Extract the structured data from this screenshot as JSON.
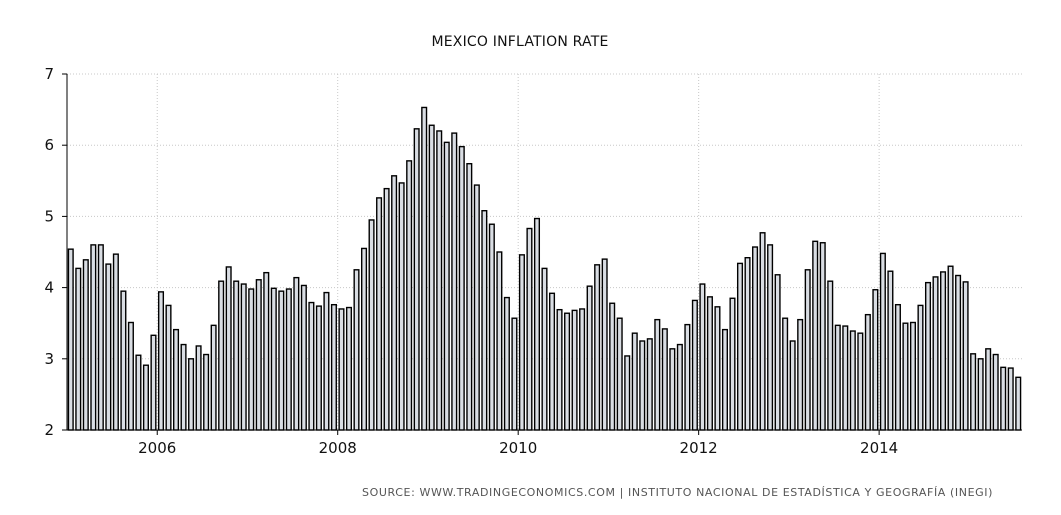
{
  "chart_data": {
    "type": "bar",
    "title": "MEXICO INFLATION RATE",
    "source": "SOURCE: WWW.TRADINGECONOMICS.COM  |  INSTITUTO NACIONAL DE ESTADÍSTICA Y GEOGRAFÍA (INEGI)",
    "xlabel": "",
    "ylabel": "",
    "ylim": [
      2,
      7
    ],
    "yticks": [
      2,
      3,
      4,
      5,
      6,
      7
    ],
    "xlim": [
      2005.0,
      2015.5833
    ],
    "xticks": [
      2006,
      2008,
      2010,
      2012,
      2014
    ],
    "xtick_labels": [
      "2006",
      "2008",
      "2010",
      "2012",
      "2014"
    ],
    "grid": true,
    "bar_fill": "#d9dde3",
    "bar_stroke": "#000000",
    "grid_color": "#c8c8c8",
    "x": [
      "2005-01",
      "2005-02",
      "2005-03",
      "2005-04",
      "2005-05",
      "2005-06",
      "2005-07",
      "2005-08",
      "2005-09",
      "2005-10",
      "2005-11",
      "2005-12",
      "2006-01",
      "2006-02",
      "2006-03",
      "2006-04",
      "2006-05",
      "2006-06",
      "2006-07",
      "2006-08",
      "2006-09",
      "2006-10",
      "2006-11",
      "2006-12",
      "2007-01",
      "2007-02",
      "2007-03",
      "2007-04",
      "2007-05",
      "2007-06",
      "2007-07",
      "2007-08",
      "2007-09",
      "2007-10",
      "2007-11",
      "2007-12",
      "2008-01",
      "2008-02",
      "2008-03",
      "2008-04",
      "2008-05",
      "2008-06",
      "2008-07",
      "2008-08",
      "2008-09",
      "2008-10",
      "2008-11",
      "2008-12",
      "2009-01",
      "2009-02",
      "2009-03",
      "2009-04",
      "2009-05",
      "2009-06",
      "2009-07",
      "2009-08",
      "2009-09",
      "2009-10",
      "2009-11",
      "2009-12",
      "2010-01",
      "2010-02",
      "2010-03",
      "2010-04",
      "2010-05",
      "2010-06",
      "2010-07",
      "2010-08",
      "2010-09",
      "2010-10",
      "2010-11",
      "2010-12",
      "2011-01",
      "2011-02",
      "2011-03",
      "2011-04",
      "2011-05",
      "2011-06",
      "2011-07",
      "2011-08",
      "2011-09",
      "2011-10",
      "2011-11",
      "2011-12",
      "2012-01",
      "2012-02",
      "2012-03",
      "2012-04",
      "2012-05",
      "2012-06",
      "2012-07",
      "2012-08",
      "2012-09",
      "2012-10",
      "2012-11",
      "2012-12",
      "2013-01",
      "2013-02",
      "2013-03",
      "2013-04",
      "2013-05",
      "2013-06",
      "2013-07",
      "2013-08",
      "2013-09",
      "2013-10",
      "2013-11",
      "2013-12",
      "2014-01",
      "2014-02",
      "2014-03",
      "2014-04",
      "2014-05",
      "2014-06",
      "2014-07",
      "2014-08",
      "2014-09",
      "2014-10",
      "2014-11",
      "2014-12",
      "2015-01",
      "2015-02",
      "2015-03",
      "2015-04",
      "2015-05",
      "2015-06",
      "2015-07"
    ],
    "values": [
      4.54,
      4.27,
      4.39,
      4.6,
      4.6,
      4.33,
      4.47,
      3.95,
      3.51,
      3.05,
      2.91,
      3.33,
      3.94,
      3.75,
      3.41,
      3.2,
      3.0,
      3.18,
      3.06,
      3.47,
      4.09,
      4.29,
      4.09,
      4.05,
      3.98,
      4.11,
      4.21,
      3.99,
      3.95,
      3.98,
      4.14,
      4.03,
      3.79,
      3.74,
      3.93,
      3.76,
      3.7,
      3.72,
      4.25,
      4.55,
      4.95,
      5.26,
      5.39,
      5.57,
      5.47,
      5.78,
      6.23,
      6.53,
      6.28,
      6.2,
      6.04,
      6.17,
      5.98,
      5.74,
      5.44,
      5.08,
      4.89,
      4.5,
      3.86,
      3.57,
      4.46,
      4.83,
      4.97,
      4.27,
      3.92,
      3.69,
      3.64,
      3.68,
      3.7,
      4.02,
      4.32,
      4.4,
      3.78,
      3.57,
      3.04,
      3.36,
      3.25,
      3.28,
      3.55,
      3.42,
      3.14,
      3.2,
      3.48,
      3.82,
      4.05,
      3.87,
      3.73,
      3.41,
      3.85,
      4.34,
      4.42,
      4.57,
      4.77,
      4.6,
      4.18,
      3.57,
      3.25,
      3.55,
      4.25,
      4.65,
      4.63,
      4.09,
      3.47,
      3.46,
      3.39,
      3.36,
      3.62,
      3.97,
      4.48,
      4.23,
      3.76,
      3.5,
      3.51,
      3.75,
      4.07,
      4.15,
      4.22,
      4.3,
      4.17,
      4.08,
      3.07,
      3.0,
      3.14,
      3.06,
      2.88,
      2.87,
      2.74
    ]
  }
}
